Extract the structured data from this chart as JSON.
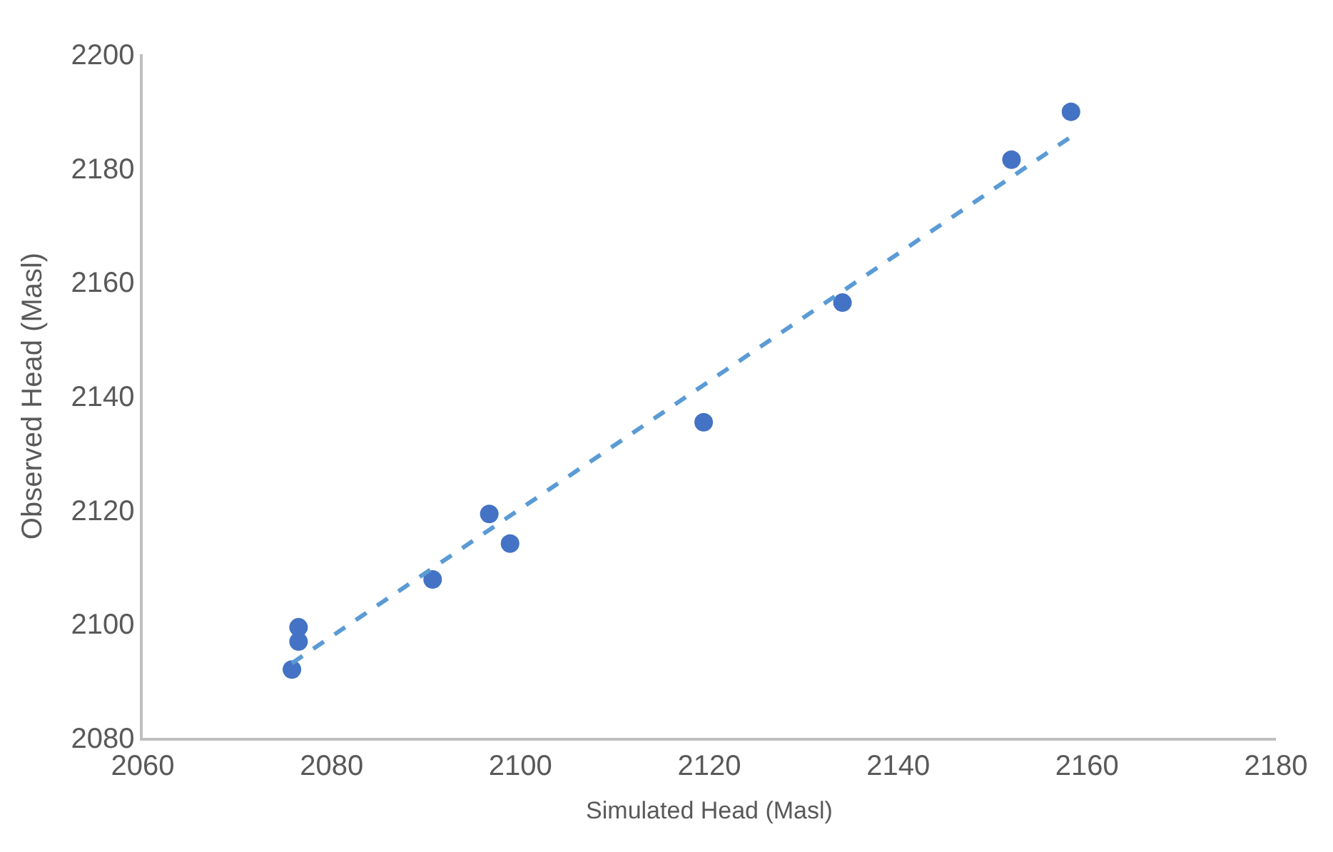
{
  "chart_data": {
    "type": "scatter",
    "xlabel": "Simulated Head (Masl)",
    "ylabel": "Observed Head (Masl)",
    "x": [
      2075.8,
      2076.5,
      2076.5,
      2090.7,
      2096.7,
      2098.9,
      2119.4,
      2134.1,
      2152.0,
      2158.3
    ],
    "series": [
      {
        "color": "#4472c4",
        "values": [
          2092.0,
          2096.9,
          2099.4,
          2107.8,
          2119.3,
          2114.1,
          2135.4,
          2156.4,
          2181.5,
          2189.9
        ],
        "marker": "circle"
      },
      {
        "type": "line",
        "color": "#5b9bd5",
        "x": [
          2075.8,
          2158.3
        ],
        "values": [
          2093.1,
          2185.5
        ],
        "line_style": "dashed",
        "marker": "none"
      }
    ],
    "xlim": [
      2060,
      2180
    ],
    "xticks": [
      2060,
      2080,
      2100,
      2120,
      2140,
      2160,
      2180
    ],
    "ylim": [
      2080,
      2200
    ],
    "yticks": [
      2080,
      2100,
      2120,
      2140,
      2160,
      2180,
      2200
    ]
  }
}
